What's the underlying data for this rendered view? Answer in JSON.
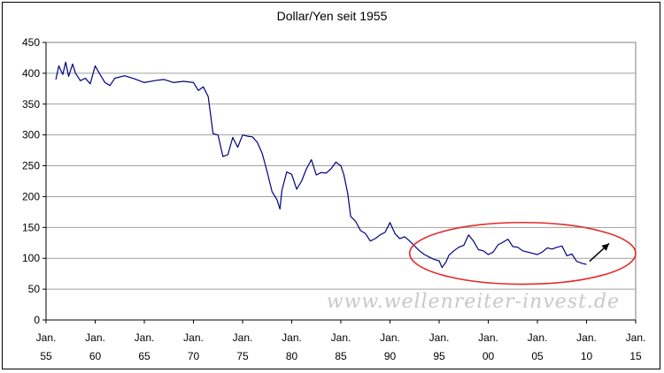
{
  "chart_data": {
    "type": "line",
    "title": "Dollar/Yen seit 1955",
    "xlabel": "",
    "ylabel": "",
    "xlim": [
      1955,
      2015
    ],
    "ylim": [
      0,
      450
    ],
    "y_ticks": [
      0,
      50,
      100,
      150,
      200,
      250,
      300,
      350,
      400,
      450
    ],
    "x_ticks": [
      {
        "year": 1955,
        "top": "Jan.",
        "bottom": "55"
      },
      {
        "year": 1960,
        "top": "Jan.",
        "bottom": "60"
      },
      {
        "year": 1965,
        "top": "Jan.",
        "bottom": "65"
      },
      {
        "year": 1970,
        "top": "Jan.",
        "bottom": "70"
      },
      {
        "year": 1975,
        "top": "Jan.",
        "bottom": "75"
      },
      {
        "year": 1980,
        "top": "Jan.",
        "bottom": "80"
      },
      {
        "year": 1985,
        "top": "Jan.",
        "bottom": "85"
      },
      {
        "year": 1990,
        "top": "Jan.",
        "bottom": "90"
      },
      {
        "year": 1995,
        "top": "Jan.",
        "bottom": "95"
      },
      {
        "year": 2000,
        "top": "Jan.",
        "bottom": "00"
      },
      {
        "year": 2005,
        "top": "Jan.",
        "bottom": "05"
      },
      {
        "year": 2010,
        "top": "Jan.",
        "bottom": "10"
      },
      {
        "year": 2015,
        "top": "Jan.",
        "bottom": "15"
      }
    ],
    "grid": true,
    "series": [
      {
        "color": "#000080",
        "x": [
          1956.0,
          1956.3,
          1956.7,
          1957.0,
          1957.3,
          1957.7,
          1958.0,
          1958.5,
          1959.0,
          1959.5,
          1960.0,
          1960.5,
          1961.0,
          1961.5,
          1962.0,
          1963.0,
          1964.0,
          1965.0,
          1966.0,
          1967.0,
          1968.0,
          1969.0,
          1970.0,
          1970.5,
          1971.0,
          1971.5,
          1972.0,
          1972.5,
          1973.0,
          1973.5,
          1974.0,
          1974.5,
          1975.0,
          1975.5,
          1976.0,
          1976.5,
          1977.0,
          1977.5,
          1978.0,
          1978.5,
          1978.8,
          1979.0,
          1979.5,
          1980.0,
          1980.5,
          1981.0,
          1981.5,
          1982.0,
          1982.5,
          1983.0,
          1983.5,
          1984.0,
          1984.5,
          1985.0,
          1985.3,
          1985.7,
          1986.0,
          1986.5,
          1987.0,
          1987.5,
          1988.0,
          1988.5,
          1989.0,
          1989.5,
          1990.0,
          1990.5,
          1991.0,
          1991.5,
          1992.0,
          1992.5,
          1993.0,
          1993.5,
          1994.0,
          1994.5,
          1995.0,
          1995.3,
          1995.7,
          1996.0,
          1996.5,
          1997.0,
          1997.5,
          1998.0,
          1998.5,
          1999.0,
          1999.5,
          2000.0,
          2000.5,
          2001.0,
          2001.5,
          2002.0,
          2002.5,
          2003.0,
          2003.5,
          2004.0,
          2004.5,
          2005.0,
          2005.5,
          2006.0,
          2006.5,
          2007.0,
          2007.5,
          2008.0,
          2008.5,
          2009.0,
          2009.5,
          2010.0
        ],
        "values": [
          390,
          412,
          398,
          418,
          395,
          415,
          400,
          388,
          392,
          383,
          412,
          398,
          385,
          380,
          392,
          396,
          391,
          385,
          388,
          390,
          385,
          387,
          385,
          372,
          378,
          362,
          302,
          300,
          265,
          268,
          296,
          280,
          300,
          298,
          297,
          288,
          270,
          240,
          208,
          195,
          180,
          210,
          240,
          236,
          212,
          225,
          245,
          260,
          235,
          239,
          238,
          245,
          256,
          250,
          236,
          205,
          168,
          160,
          145,
          140,
          128,
          132,
          138,
          142,
          158,
          140,
          132,
          135,
          128,
          120,
          112,
          106,
          102,
          98,
          96,
          85,
          94,
          105,
          112,
          118,
          121,
          138,
          128,
          114,
          112,
          106,
          110,
          122,
          126,
          131,
          119,
          118,
          112,
          110,
          108,
          106,
          110,
          117,
          115,
          118,
          120,
          104,
          107,
          95,
          92,
          90
        ]
      }
    ],
    "annotations": {
      "watermark": "www.wellenreiter-invest.de",
      "ellipse": {
        "x_center": 2003.5,
        "y_center": 108,
        "x_half_width": 11.5,
        "y_half_height": 50,
        "color": "#e32b2b"
      },
      "arrow": {
        "from": [
          2010.3,
          95
        ],
        "to": [
          2012.3,
          124
        ],
        "color": "#000000"
      }
    }
  }
}
